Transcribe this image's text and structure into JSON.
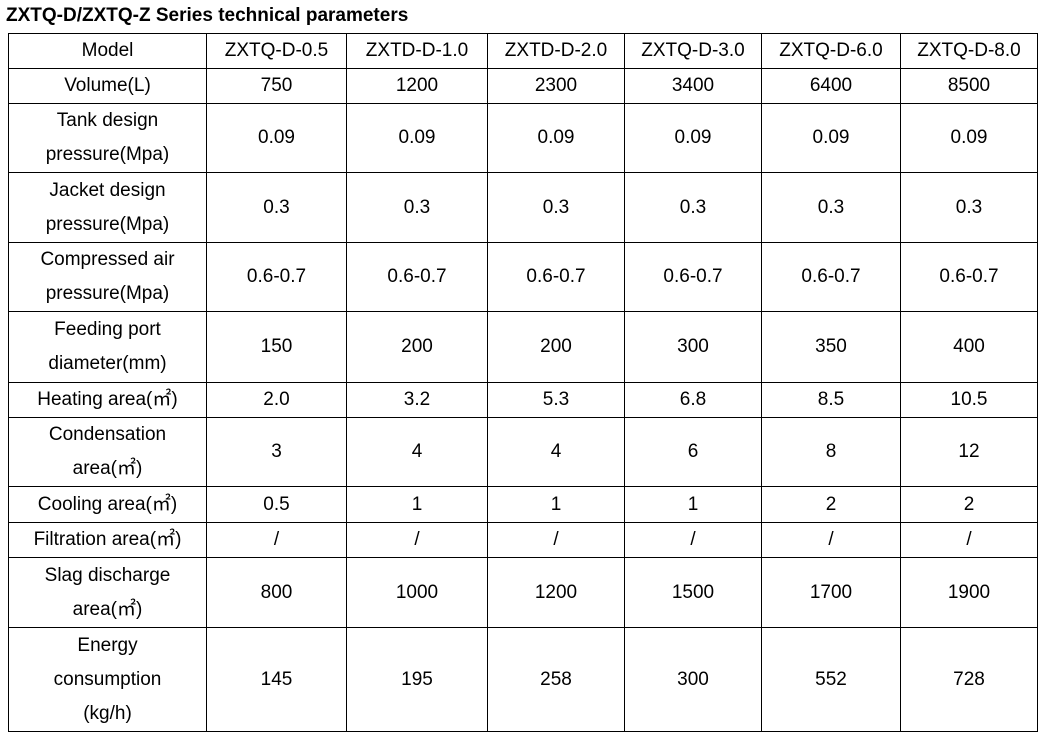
{
  "title": "ZXTQ-D/ZXTQ-Z Series technical parameters",
  "header": {
    "label": "Model",
    "models": [
      "ZXTQ-D-0.5",
      "ZXTD-D-1.0",
      "ZXTD-D-2.0",
      "ZXTQ-D-3.0",
      "ZXTQ-D-6.0",
      "ZXTQ-D-8.0"
    ]
  },
  "rows": [
    {
      "label": [
        "Volume(L)"
      ],
      "values": [
        "750",
        "1200",
        "2300",
        "3400",
        "6400",
        "8500"
      ]
    },
    {
      "label": [
        "Tank design",
        "pressure(Mpa)"
      ],
      "values": [
        "0.09",
        "0.09",
        "0.09",
        "0.09",
        "0.09",
        "0.09"
      ]
    },
    {
      "label": [
        "Jacket design",
        "pressure(Mpa)"
      ],
      "values": [
        "0.3",
        "0.3",
        "0.3",
        "0.3",
        "0.3",
        "0.3"
      ]
    },
    {
      "label": [
        "Compressed air",
        "pressure(Mpa)"
      ],
      "values": [
        "0.6-0.7",
        "0.6-0.7",
        "0.6-0.7",
        "0.6-0.7",
        "0.6-0.7",
        "0.6-0.7"
      ]
    },
    {
      "label": [
        "Feeding port",
        "diameter(mm)"
      ],
      "values": [
        "150",
        "200",
        "200",
        "300",
        "350",
        "400"
      ]
    },
    {
      "label": [
        "Heating area(㎡)"
      ],
      "values": [
        "2.0",
        "3.2",
        "5.3",
        "6.8",
        "8.5",
        "10.5"
      ]
    },
    {
      "label": [
        "Condensation",
        "area(㎡)"
      ],
      "values": [
        "3",
        "4",
        "4",
        "6",
        "8",
        "12"
      ]
    },
    {
      "label": [
        "Cooling area(㎡)"
      ],
      "values": [
        "0.5",
        "1",
        "1",
        "1",
        "2",
        "2"
      ]
    },
    {
      "label": [
        "Filtration area(㎡)"
      ],
      "values": [
        "/",
        "/",
        "/",
        "/",
        "/",
        "/"
      ]
    },
    {
      "label": [
        "Slag discharge",
        "area(㎡)"
      ],
      "values": [
        "800",
        "1000",
        "1200",
        "1500",
        "1700",
        "1900"
      ]
    },
    {
      "label": [
        "Energy",
        "consumption",
        "(kg/h)"
      ],
      "values": [
        "145",
        "195",
        "258",
        "300",
        "552",
        "728"
      ]
    }
  ]
}
